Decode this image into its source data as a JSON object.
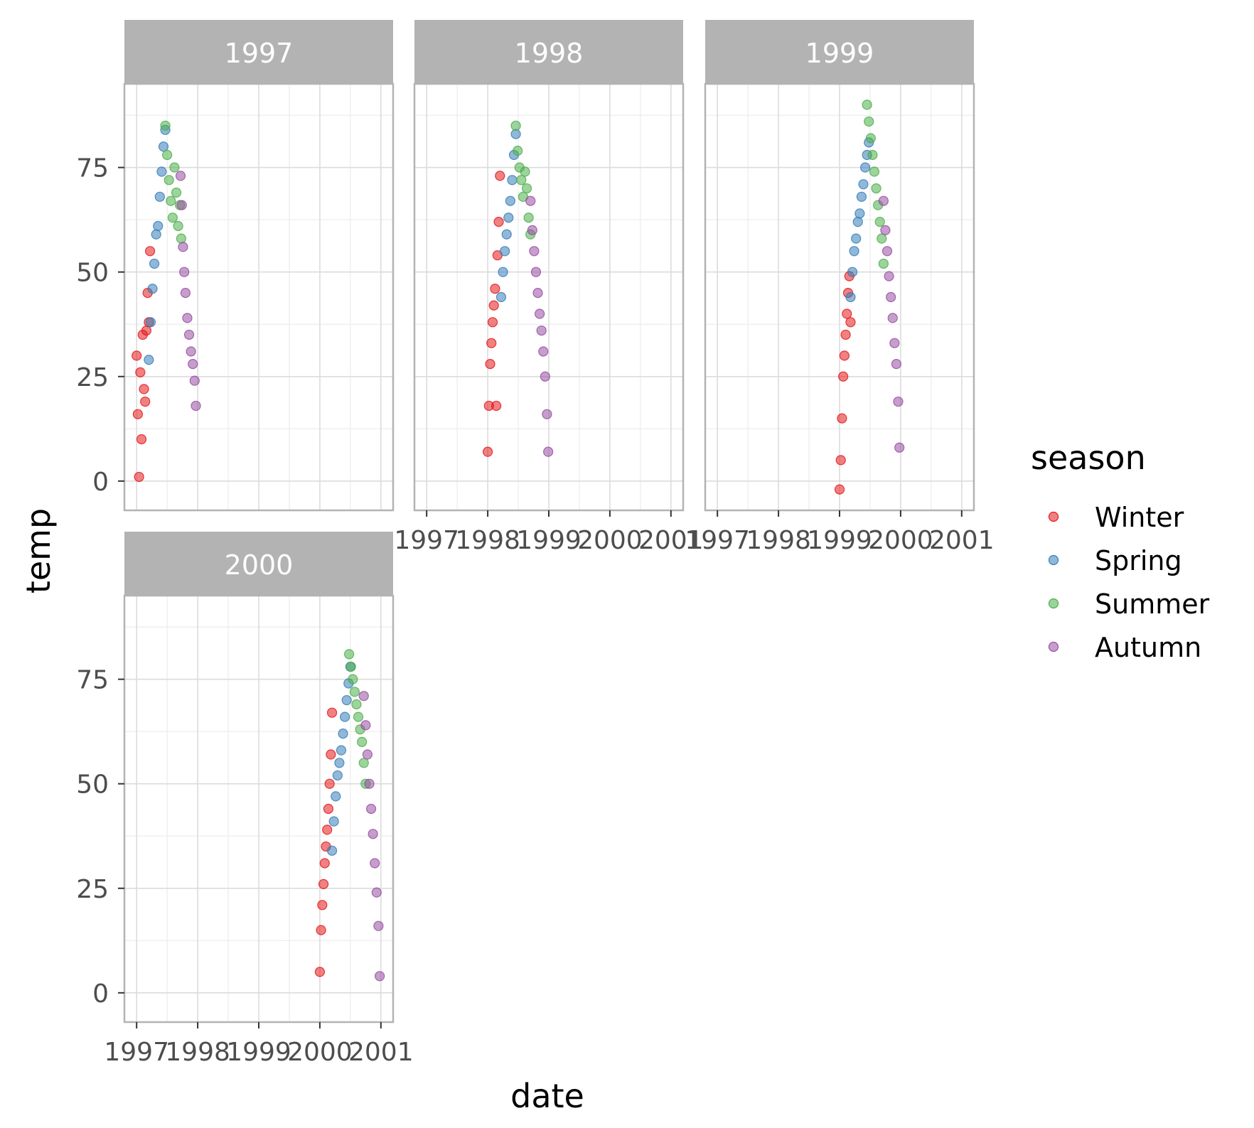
{
  "chart_data": {
    "type": "scatter",
    "facet_by": "year",
    "panels": [
      {
        "label": "1997"
      },
      {
        "label": "1998"
      },
      {
        "label": "1999"
      },
      {
        "label": "2000"
      }
    ],
    "x_axis": {
      "label": "date",
      "ticks": [
        "1997",
        "1998",
        "1999",
        "2000",
        "2001"
      ],
      "range": [
        1996.8,
        2001.2
      ]
    },
    "y_axis": {
      "label": "temp",
      "ticks": [
        0,
        25,
        50,
        75
      ],
      "range": [
        -7,
        95
      ]
    },
    "grid": true,
    "point_alpha": 0.55,
    "legend": {
      "title": "season",
      "position": "right",
      "entries": [
        {
          "label": "Winter",
          "color": "#e41a1c"
        },
        {
          "label": "Spring",
          "color": "#377eb8"
        },
        {
          "label": "Summer",
          "color": "#4daf4a"
        },
        {
          "label": "Autumn",
          "color": "#984ea3"
        }
      ]
    },
    "series": [
      {
        "panel": "1997",
        "season": "Winter",
        "color": "#e41a1c",
        "x": [
          1997.0,
          1997.02,
          1997.04,
          1997.06,
          1997.08,
          1997.1,
          1997.12,
          1997.14,
          1997.16,
          1997.18,
          1997.2,
          1997.22
        ],
        "y": [
          30,
          16,
          1,
          26,
          10,
          35,
          22,
          19,
          36,
          45,
          38,
          55
        ]
      },
      {
        "panel": "1997",
        "season": "Spring",
        "color": "#377eb8",
        "x": [
          1997.2,
          1997.23,
          1997.26,
          1997.29,
          1997.32,
          1997.35,
          1997.38,
          1997.41,
          1997.44,
          1997.47
        ],
        "y": [
          29,
          38,
          46,
          52,
          59,
          61,
          68,
          74,
          80,
          84
        ]
      },
      {
        "panel": "1997",
        "season": "Summer",
        "color": "#4daf4a",
        "x": [
          1997.47,
          1997.5,
          1997.53,
          1997.56,
          1997.59,
          1997.62,
          1997.65,
          1997.68,
          1997.71,
          1997.73
        ],
        "y": [
          85,
          78,
          72,
          67,
          63,
          75,
          69,
          61,
          66,
          58
        ]
      },
      {
        "panel": "1997",
        "season": "Autumn",
        "color": "#984ea3",
        "x": [
          1997.72,
          1997.74,
          1997.76,
          1997.78,
          1997.8,
          1997.83,
          1997.86,
          1997.89,
          1997.92,
          1997.95,
          1997.97
        ],
        "y": [
          73,
          66,
          56,
          50,
          45,
          39,
          35,
          31,
          28,
          24,
          18
        ]
      },
      {
        "panel": "1998",
        "season": "Winter",
        "color": "#e41a1c",
        "x": [
          1998.0,
          1998.02,
          1998.04,
          1998.06,
          1998.08,
          1998.1,
          1998.12,
          1998.14,
          1998.16,
          1998.18,
          1998.2
        ],
        "y": [
          7,
          18,
          28,
          33,
          38,
          42,
          46,
          18,
          54,
          62,
          73
        ]
      },
      {
        "panel": "1998",
        "season": "Spring",
        "color": "#377eb8",
        "x": [
          1998.22,
          1998.25,
          1998.28,
          1998.31,
          1998.34,
          1998.37,
          1998.4,
          1998.43,
          1998.46
        ],
        "y": [
          44,
          50,
          55,
          59,
          63,
          67,
          72,
          78,
          83
        ]
      },
      {
        "panel": "1998",
        "season": "Summer",
        "color": "#4daf4a",
        "x": [
          1998.46,
          1998.49,
          1998.52,
          1998.55,
          1998.58,
          1998.61,
          1998.64,
          1998.67,
          1998.7
        ],
        "y": [
          85,
          79,
          75,
          72,
          68,
          74,
          70,
          63,
          59
        ]
      },
      {
        "panel": "1998",
        "season": "Autumn",
        "color": "#984ea3",
        "x": [
          1998.7,
          1998.73,
          1998.76,
          1998.79,
          1998.82,
          1998.85,
          1998.88,
          1998.91,
          1998.94,
          1998.97,
          1998.99
        ],
        "y": [
          67,
          60,
          55,
          50,
          45,
          40,
          36,
          31,
          25,
          16,
          7
        ]
      },
      {
        "panel": "1999",
        "season": "Winter",
        "color": "#e41a1c",
        "x": [
          1999.0,
          1999.02,
          1999.04,
          1999.06,
          1999.08,
          1999.1,
          1999.12,
          1999.14,
          1999.16,
          1999.18
        ],
        "y": [
          -2,
          5,
          15,
          25,
          30,
          35,
          40,
          45,
          49,
          38
        ]
      },
      {
        "panel": "1999",
        "season": "Spring",
        "color": "#377eb8",
        "x": [
          1999.18,
          1999.21,
          1999.24,
          1999.27,
          1999.3,
          1999.33,
          1999.36,
          1999.39,
          1999.42,
          1999.45,
          1999.48
        ],
        "y": [
          44,
          50,
          55,
          58,
          62,
          64,
          68,
          71,
          75,
          78,
          81
        ]
      },
      {
        "panel": "1999",
        "season": "Summer",
        "color": "#4daf4a",
        "x": [
          1999.45,
          1999.48,
          1999.51,
          1999.54,
          1999.57,
          1999.6,
          1999.63,
          1999.66,
          1999.69,
          1999.72
        ],
        "y": [
          90,
          86,
          82,
          78,
          74,
          70,
          66,
          62,
          58,
          52
        ]
      },
      {
        "panel": "1999",
        "season": "Autumn",
        "color": "#984ea3",
        "x": [
          1999.72,
          1999.75,
          1999.78,
          1999.81,
          1999.84,
          1999.87,
          1999.9,
          1999.93,
          1999.96,
          1999.98
        ],
        "y": [
          67,
          60,
          55,
          49,
          44,
          39,
          33,
          28,
          19,
          8
        ]
      },
      {
        "panel": "2000",
        "season": "Winter",
        "color": "#e41a1c",
        "x": [
          2000.0,
          2000.02,
          2000.04,
          2000.06,
          2000.08,
          2000.1,
          2000.12,
          2000.14,
          2000.16,
          2000.18,
          2000.2
        ],
        "y": [
          5,
          15,
          21,
          26,
          31,
          35,
          39,
          44,
          50,
          57,
          67
        ]
      },
      {
        "panel": "2000",
        "season": "Spring",
        "color": "#377eb8",
        "x": [
          2000.2,
          2000.23,
          2000.26,
          2000.29,
          2000.32,
          2000.35,
          2000.38,
          2000.41,
          2000.44,
          2000.47,
          2000.5
        ],
        "y": [
          34,
          41,
          47,
          52,
          55,
          58,
          62,
          66,
          70,
          74,
          78
        ]
      },
      {
        "panel": "2000",
        "season": "Summer",
        "color": "#4daf4a",
        "x": [
          2000.48,
          2000.51,
          2000.54,
          2000.57,
          2000.6,
          2000.63,
          2000.66,
          2000.69,
          2000.72,
          2000.75
        ],
        "y": [
          81,
          78,
          75,
          72,
          69,
          66,
          63,
          60,
          55,
          50
        ]
      },
      {
        "panel": "2000",
        "season": "Autumn",
        "color": "#984ea3",
        "x": [
          2000.72,
          2000.75,
          2000.78,
          2000.81,
          2000.84,
          2000.87,
          2000.9,
          2000.93,
          2000.96,
          2000.98
        ],
        "y": [
          71,
          64,
          57,
          50,
          44,
          38,
          31,
          24,
          16,
          4
        ]
      }
    ]
  }
}
